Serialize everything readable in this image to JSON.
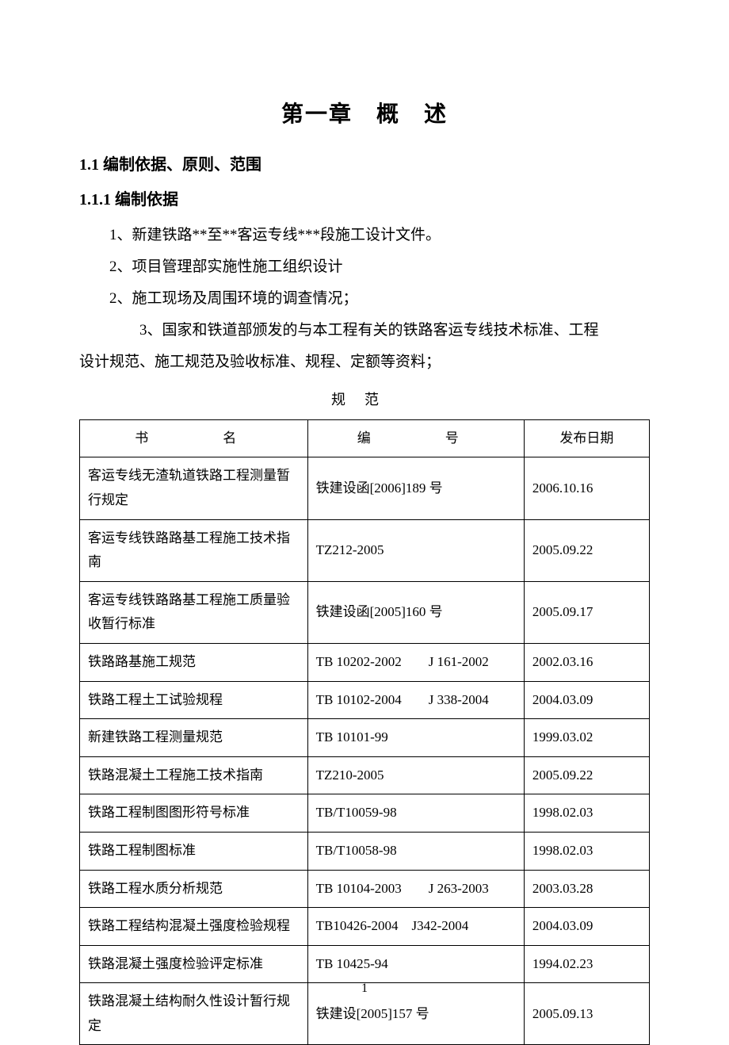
{
  "chapter_title": "第一章　概　述",
  "section_1_1": "1.1 编制依据、原则、范围",
  "section_1_1_1": "1.1.1 编制依据",
  "paragraphs": {
    "p1": "1、新建铁路**至**客运专线***段施工设计文件。",
    "p2": "2、项目管理部实施性施工组织设计",
    "p3": "2、施工现场及周围环境的调查情况；",
    "p4": "3、国家和铁道部颁发的与本工程有关的铁路客运专线技术标准、工程设计规范、施工规范及验收标准、规程、定额等资料；"
  },
  "table_title": "规范",
  "table": {
    "headers": {
      "name": "书　　名",
      "code": "编　　号",
      "date": "发布日期"
    },
    "rows": [
      {
        "name": "客运专线无渣轨道铁路工程测量暂行规定",
        "code": "铁建设函[2006]189 号",
        "date": "2006.10.16"
      },
      {
        "name": "客运专线铁路路基工程施工技术指南",
        "code": "TZ212-2005",
        "date": "2005.09.22"
      },
      {
        "name": "客运专线铁路路基工程施工质量验收暂行标准",
        "code": "铁建设函[2005]160 号",
        "date": "2005.09.17"
      },
      {
        "name": "铁路路基施工规范",
        "code": "TB 10202-2002　　J 161-2002",
        "date": "2002.03.16"
      },
      {
        "name": "铁路工程土工试验规程",
        "code": "TB 10102-2004　　J 338-2004",
        "date": "2004.03.09"
      },
      {
        "name": "新建铁路工程测量规范",
        "code": "TB 10101-99",
        "date": "1999.03.02"
      },
      {
        "name": "铁路混凝土工程施工技术指南",
        "code": "TZ210-2005",
        "date": "2005.09.22"
      },
      {
        "name": "铁路工程制图图形符号标准",
        "code": "TB/T10059-98",
        "date": "1998.02.03"
      },
      {
        "name": "铁路工程制图标准",
        "code": "TB/T10058-98",
        "date": "1998.02.03"
      },
      {
        "name": "铁路工程水质分析规范",
        "code": "TB 10104-2003　　J 263-2003",
        "date": "2003.03.28"
      },
      {
        "name": "铁路工程结构混凝土强度检验规程",
        "code": "TB10426-2004　J342-2004",
        "date": "2004.03.09"
      },
      {
        "name": "铁路混凝土强度检验评定标准",
        "code": "TB 10425-94",
        "date": "1994.02.23"
      },
      {
        "name": "铁路混凝土结构耐久性设计暂行规定",
        "code": "铁建设[2005]157 号",
        "date": "2005.09.13"
      }
    ]
  },
  "page_number": "1"
}
